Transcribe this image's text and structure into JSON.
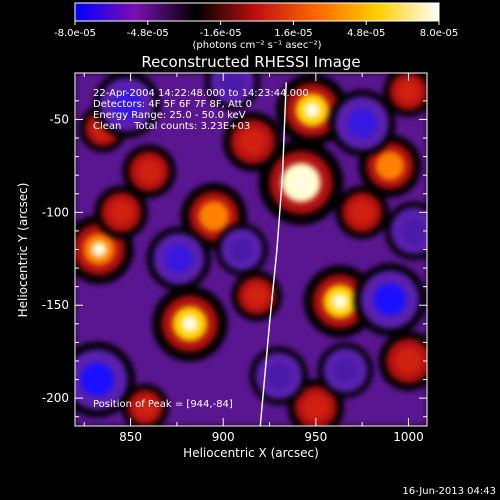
{
  "chart_data": {
    "type": "heatmap",
    "title": "Reconstructed RHESSI Image",
    "xlabel": "Heliocentric X (arcsec)",
    "ylabel": "Heliocentric Y (arcsec)",
    "xlim": [
      820,
      1010
    ],
    "ylim": [
      -215,
      -25
    ],
    "x_ticks": [
      850,
      900,
      950,
      1000
    ],
    "y_ticks": [
      -50,
      -100,
      -150,
      -200
    ],
    "colorbar": {
      "range": [
        -8e-05,
        8e-05
      ],
      "tick_labels": [
        "-8.0e-05",
        "-4.8e-05",
        "-1.6e-05",
        "1.6e-05",
        "4.8e-05",
        "8.0e-05"
      ],
      "unit_label": "(photons cm⁻² s⁻¹ asec⁻²)",
      "colors": [
        "#0000ff",
        "#7a10b0",
        "#000000",
        "#c01010",
        "#ff6a00",
        "#ffd000",
        "#ffffff"
      ]
    },
    "annotations": [
      "22-Apr-2004 14:22:48.000 to 14:23:44.000",
      "Detectors: 4F 5F 6F 7F 8F, Att 0",
      "Energy Range: 25.0 - 50.0 keV",
      "Clean    Total counts: 3.23E+03"
    ],
    "peak_label": "Position of Peak = [944,-84]",
    "peak": [
      944,
      -84
    ],
    "blobs": [
      {
        "x": 942,
        "y": -84,
        "value": 8e-05
      },
      {
        "x": 948,
        "y": -45,
        "value": 6e-05
      },
      {
        "x": 916,
        "y": -62,
        "value": 4e-05
      },
      {
        "x": 833,
        "y": -120,
        "value": 5.5e-05
      },
      {
        "x": 845,
        "y": -100,
        "value": 3e-05
      },
      {
        "x": 882,
        "y": -160,
        "value": 6.5e-05
      },
      {
        "x": 895,
        "y": -102,
        "value": 5e-05
      },
      {
        "x": 963,
        "y": -148,
        "value": 6e-05
      },
      {
        "x": 990,
        "y": -75,
        "value": 4.5e-05
      },
      {
        "x": 1000,
        "y": -180,
        "value": 4e-05
      },
      {
        "x": 860,
        "y": -78,
        "value": 3e-05
      },
      {
        "x": 950,
        "y": -205,
        "value": 3.5e-05
      },
      {
        "x": 975,
        "y": -100,
        "value": 3e-05
      },
      {
        "x": 918,
        "y": -145,
        "value": 2.5e-05
      },
      {
        "x": 1000,
        "y": -35,
        "value": 2.5e-05
      },
      {
        "x": 858,
        "y": -205,
        "value": 2e-05
      },
      {
        "x": 835,
        "y": -55,
        "value": 2e-05
      },
      {
        "x": 848,
        "y": -42,
        "value": -6e-05
      },
      {
        "x": 876,
        "y": -125,
        "value": -5.5e-05
      },
      {
        "x": 975,
        "y": -52,
        "value": -6e-05
      },
      {
        "x": 990,
        "y": -147,
        "value": -7e-05
      },
      {
        "x": 930,
        "y": -188,
        "value": -4.5e-05
      },
      {
        "x": 832,
        "y": -190,
        "value": -7.5e-05
      },
      {
        "x": 1003,
        "y": -110,
        "value": -4.5e-05
      },
      {
        "x": 905,
        "y": -30,
        "value": -4e-05
      },
      {
        "x": 966,
        "y": -185,
        "value": -4e-05
      },
      {
        "x": 910,
        "y": -120,
        "value": -3.5e-05
      }
    ],
    "limb_curve": [
      [
        934,
        -30
      ],
      [
        932,
        -80
      ],
      [
        929,
        -120
      ],
      [
        925,
        -160
      ],
      [
        920,
        -215
      ]
    ]
  },
  "footer": {
    "timestamp": "16-Jun-2013 04:43"
  }
}
